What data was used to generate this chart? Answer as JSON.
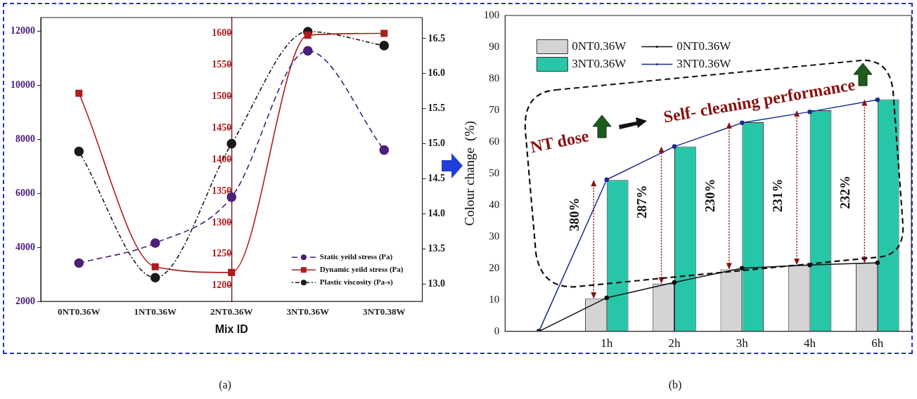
{
  "chart_data": [
    {
      "type": "line",
      "xlabel": "Mix ID",
      "categories": [
        "0NT0.36W",
        "1NT0.36W",
        "2NT0.36W",
        "3NT0.36W",
        "3NT0.38W"
      ],
      "series": [
        {
          "name": "Static yeild stress (Pa)",
          "color": "#4b1f7a",
          "values": [
            3420,
            4160,
            5860,
            11270,
            7600
          ],
          "marker": "circle",
          "line_style": "dashed"
        },
        {
          "name": "Dynamic yeild stress (Pa)",
          "color": "#b01c1c",
          "axis": "y2",
          "values": [
            1505,
            1230,
            1221,
            1597,
            1600
          ],
          "marker": "square",
          "line_style": "solid"
        },
        {
          "name": "Plastic viscosity (Pa-s)",
          "color": "#1a1a1a",
          "axis": "y3",
          "values": [
            14.89,
            13.09,
            15.0,
            16.6,
            16.4
          ],
          "marker": "circle",
          "line_style": "dotted"
        }
      ],
      "ylim": [
        2000,
        12500
      ],
      "yticks": [
        2000,
        4000,
        6000,
        8000,
        10000,
        12000
      ],
      "y2lim": [
        1175,
        1625
      ],
      "y2ticks": [
        1200,
        1250,
        1300,
        1350,
        1400,
        1450,
        1500,
        1550,
        1600
      ],
      "y3lim": [
        12.75,
        16.8
      ],
      "y3ticks": [
        {
          "value": 13,
          "label": "13.0"
        },
        13.5,
        {
          "value": 14,
          "label": "14.0"
        },
        14.5,
        {
          "value": 15,
          "label": "15.0"
        },
        15.5,
        {
          "value": 16,
          "label": "16.0"
        },
        16.5
      ],
      "legend": "bottom right",
      "grid": false,
      "annotations": [
        "(a)"
      ]
    },
    {
      "type": "bar",
      "ylabel": "Colour change  (%)",
      "categories": [
        null,
        "1h",
        "2h",
        "3h",
        "4h",
        "6h"
      ],
      "series": [
        {
          "name": "0NT0.36W",
          "color": "#d4d4d4",
          "values": [
            null,
            10.3,
            15.1,
            19.6,
            21.0,
            21.6
          ]
        },
        {
          "name": "3NT0.36W",
          "color": "#27c6a8",
          "values": [
            null,
            47.9,
            58.5,
            66.2,
            70.0,
            73.4
          ]
        },
        {
          "name": "0NT0.36W",
          "type": "line",
          "color": "#111111",
          "values": [
            0,
            10.6,
            15.5,
            20.0,
            21.0,
            21.7
          ],
          "marker": "circle"
        },
        {
          "name": "3NT0.36W",
          "type": "line",
          "color": "#1c2a8c",
          "values": [
            0,
            48.0,
            58.5,
            66.0,
            69.5,
            73.3
          ],
          "marker": "circle"
        }
      ],
      "ylim": [
        0,
        100
      ],
      "yticks": [
        0,
        10,
        20,
        30,
        40,
        50,
        60,
        70,
        80,
        90,
        100
      ],
      "legend": "top left",
      "grid": false,
      "annotations": [
        {
          "text": "380%",
          "x": "1h",
          "y": 37
        },
        {
          "text": "287%",
          "x": "2h",
          "y": 41
        },
        {
          "text": "230%",
          "x": "3h",
          "y": 43
        },
        {
          "text": "231%",
          "x": "4h",
          "y": 43
        },
        {
          "text": "232%",
          "x": "6h",
          "y": 44
        },
        "NT dose",
        "Self- cleaning performance",
        "(b)"
      ]
    }
  ]
}
